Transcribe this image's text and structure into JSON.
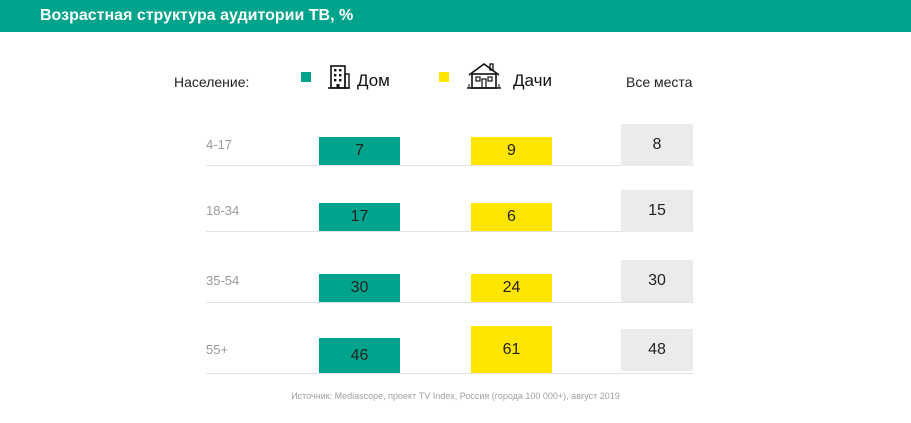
{
  "header": {
    "title": "Возрастная структура аудитории ТВ, %"
  },
  "legend": {
    "population_label": "Население:",
    "home_label": "Дом",
    "dacha_label": "Дачи",
    "all_label": "Все места",
    "home_color": "#00a38b",
    "dacha_color": "#ffe600",
    "all_color": "#ebebeb",
    "home_icon": "apartment-building-icon",
    "dacha_icon": "country-house-icon"
  },
  "chart_data": {
    "type": "bar",
    "title": "Возрастная структура аудитории ТВ, %",
    "categories": [
      "4-17",
      "18-34",
      "35-54",
      "55+"
    ],
    "series": [
      {
        "name": "Дом",
        "values": [
          7,
          17,
          30,
          46
        ],
        "color": "#00a38b"
      },
      {
        "name": "Дачи",
        "values": [
          9,
          6,
          24,
          61
        ],
        "color": "#ffe600"
      }
    ],
    "all_places": {
      "name": "Все места",
      "values": [
        8,
        15,
        30,
        48
      ]
    }
  },
  "source": "Источник: Mediascope, проект TV Index, Россия (города 100 000+), август 2019"
}
